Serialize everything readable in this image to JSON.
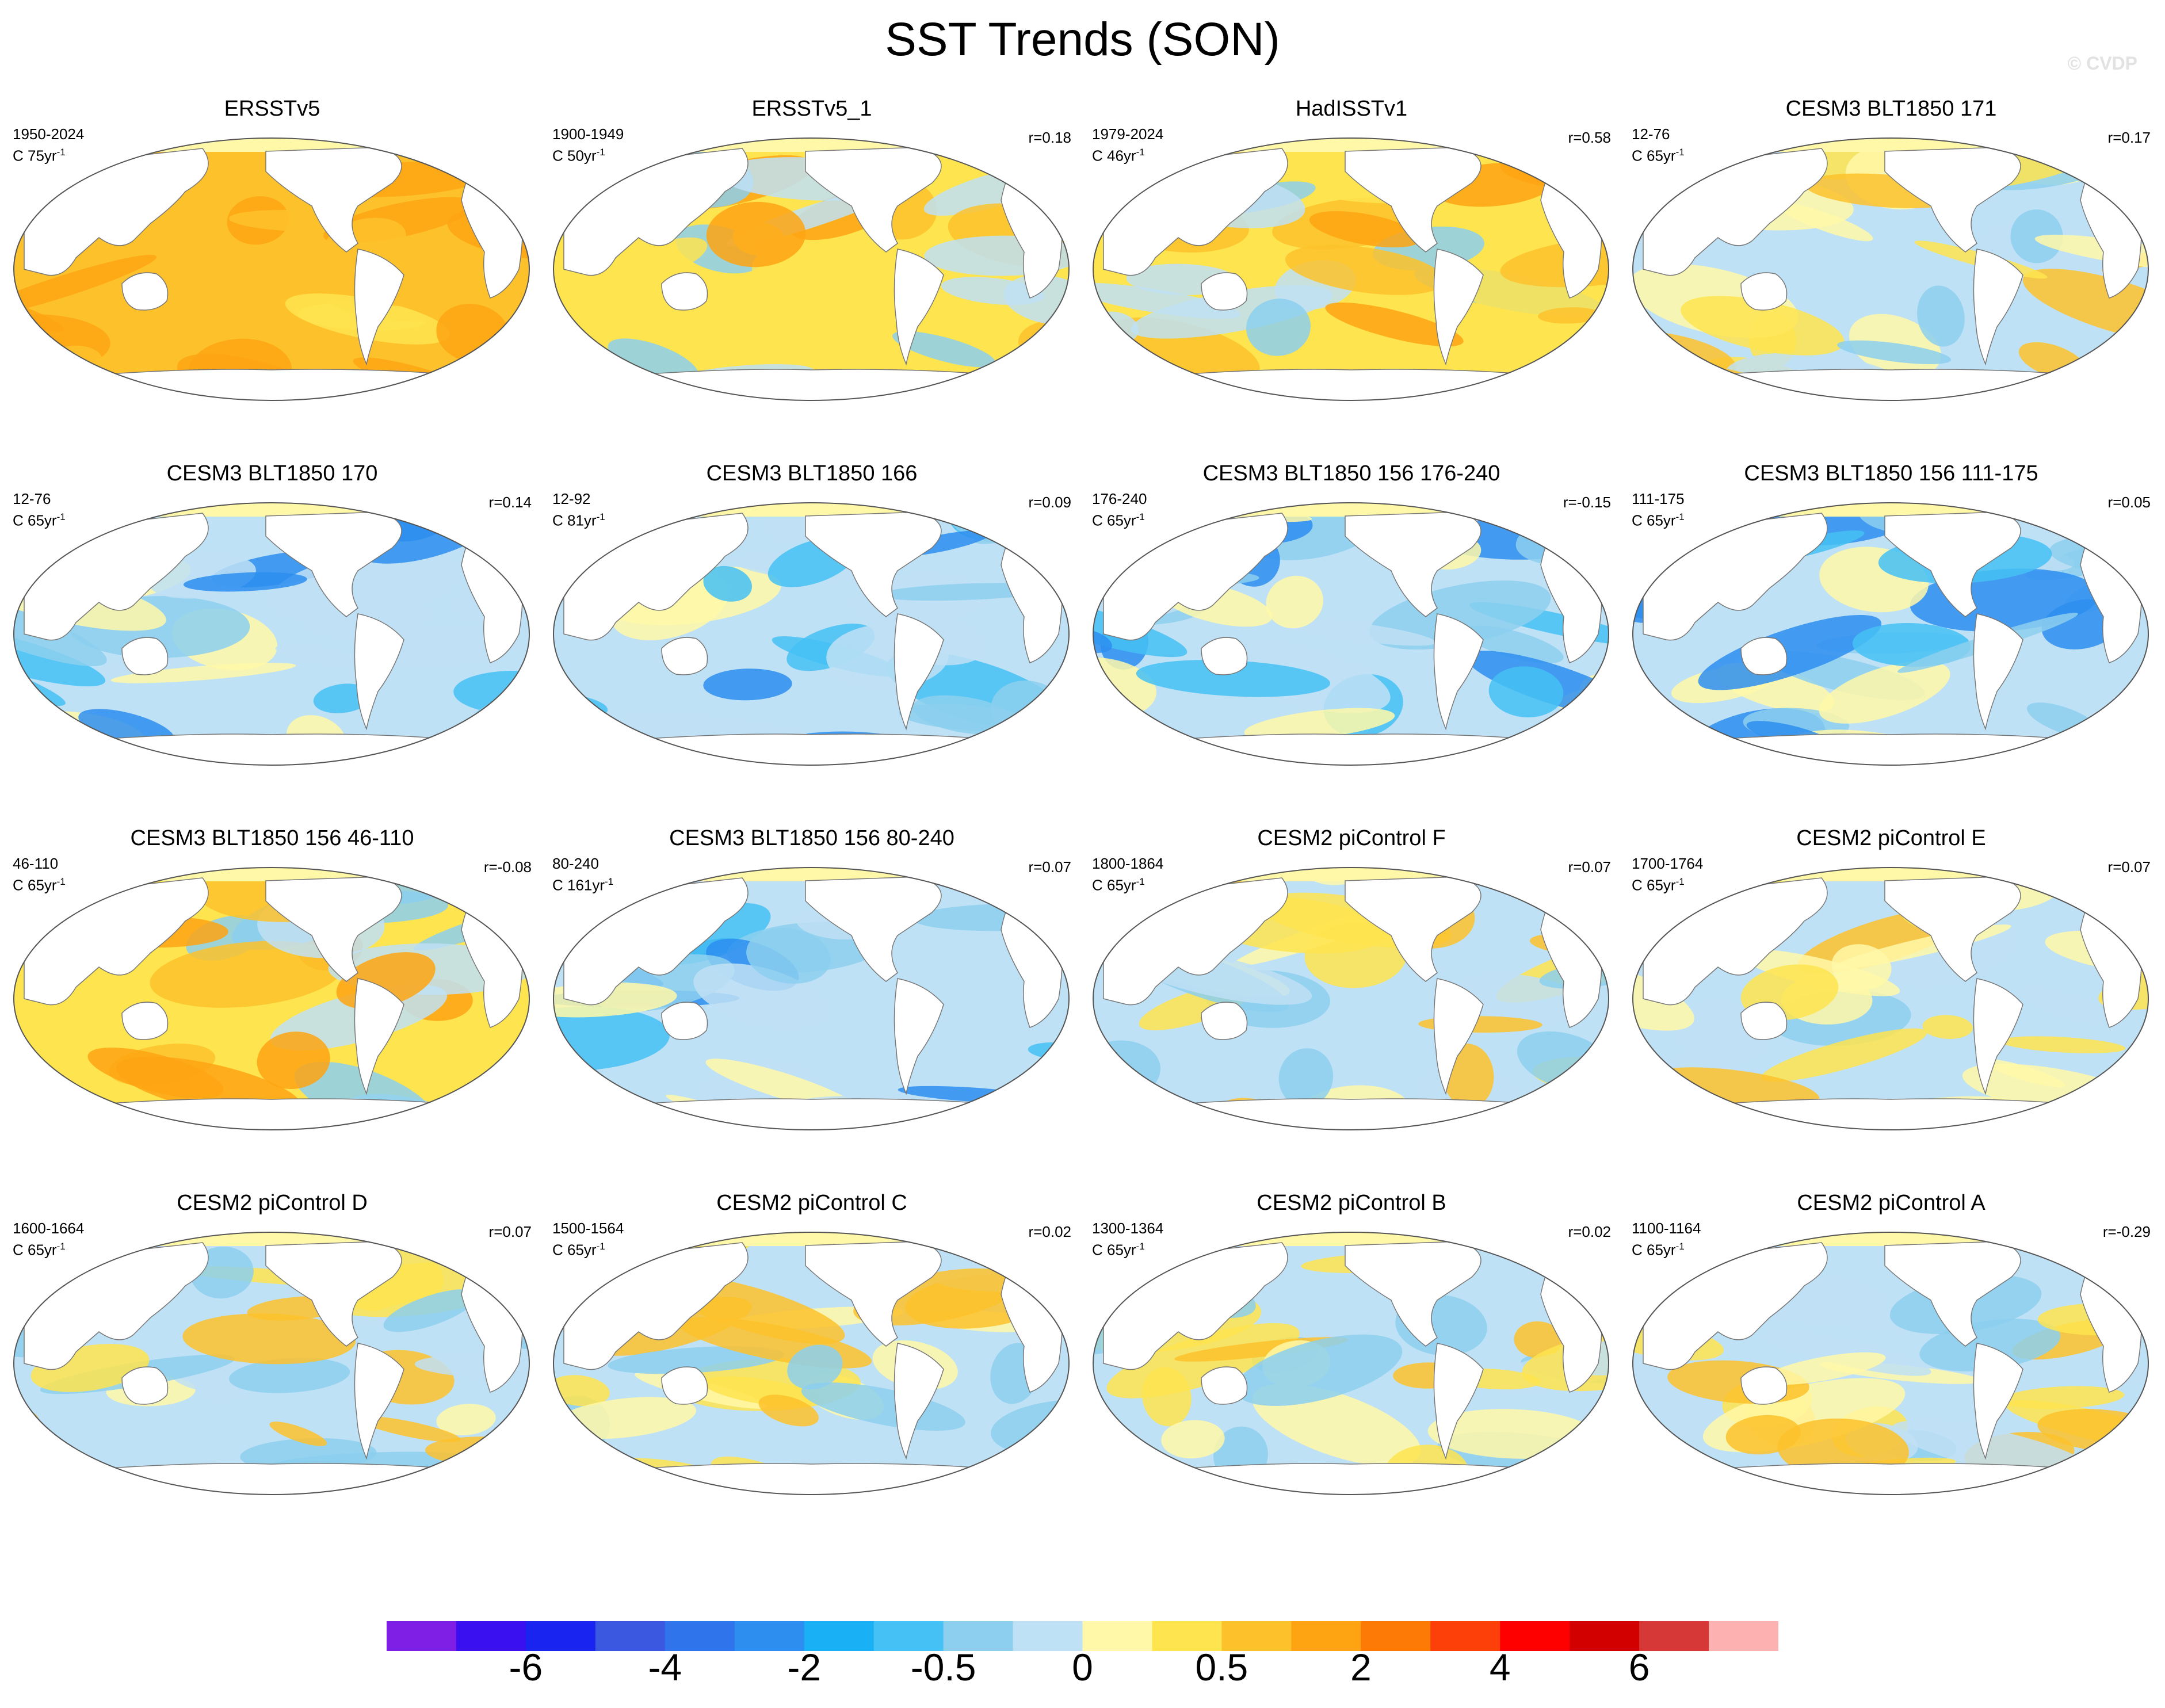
{
  "title": "SST Trends (SON)",
  "copyright": "© CVDP",
  "panels": [
    {
      "title": "ERSSTv5",
      "period": "1950-2024",
      "rate": "C 75yr",
      "r": "",
      "theme": "warm"
    },
    {
      "title": "ERSSTv5_1",
      "period": "1900-1949",
      "rate": "C 50yr",
      "r": "r=0.18",
      "theme": "warmmix"
    },
    {
      "title": "HadISSTv1",
      "period": "1979-2024",
      "rate": "C 46yr",
      "r": "r=0.58",
      "theme": "warmmix"
    },
    {
      "title": "CESM3 BLT1850 171",
      "period": "12-76",
      "rate": "C 65yr",
      "r": "r=0.17",
      "theme": "mixed"
    },
    {
      "title": "CESM3 BLT1850 170",
      "period": "12-76",
      "rate": "C 65yr",
      "r": "r=0.14",
      "theme": "cool"
    },
    {
      "title": "CESM3 BLT1850 166",
      "period": "12-92",
      "rate": "C 81yr",
      "r": "r=0.09",
      "theme": "cool"
    },
    {
      "title": "CESM3 BLT1850 156 176-240",
      "period": "176-240",
      "rate": "C 65yr",
      "r": "r=-0.15",
      "theme": "cool"
    },
    {
      "title": "CESM3 BLT1850 156 111-175",
      "period": "111-175",
      "rate": "C 65yr",
      "r": "r=0.05",
      "theme": "cool"
    },
    {
      "title": "CESM3 BLT1850 156 46-110",
      "period": "46-110",
      "rate": "C 65yr",
      "r": "r=-0.08",
      "theme": "warmmix"
    },
    {
      "title": "CESM3 BLT1850 156 80-240",
      "period": "80-240",
      "rate": "C 161yr",
      "r": "r=0.07",
      "theme": "cool"
    },
    {
      "title": "CESM2 piControl F",
      "period": "1800-1864",
      "rate": "C 65yr",
      "r": "r=0.07",
      "theme": "mixed"
    },
    {
      "title": "CESM2 piControl E",
      "period": "1700-1764",
      "rate": "C 65yr",
      "r": "r=0.07",
      "theme": "mixed"
    },
    {
      "title": "CESM2 piControl D",
      "period": "1600-1664",
      "rate": "C 65yr",
      "r": "r=0.07",
      "theme": "mixed"
    },
    {
      "title": "CESM2 piControl C",
      "period": "1500-1564",
      "rate": "C 65yr",
      "r": "r=0.02",
      "theme": "mixed"
    },
    {
      "title": "CESM2 piControl B",
      "period": "1300-1364",
      "rate": "C 65yr",
      "r": "r=0.02",
      "theme": "mixed"
    },
    {
      "title": "CESM2 piControl A",
      "period": "1100-1164",
      "rate": "C 65yr",
      "r": "r=-0.29",
      "theme": "mixed"
    }
  ],
  "rate_exponent": "-1",
  "colorbar": {
    "colors": [
      "#7f1fe6",
      "#3a10f0",
      "#1a24f0",
      "#3b59e0",
      "#2f74ea",
      "#2d8ef0",
      "#1ab0f5",
      "#45c1f5",
      "#8ccfef",
      "#bfe1f5",
      "#fff8a8",
      "#fee44f",
      "#fdc22b",
      "#fea413",
      "#fd7a07",
      "#fd3f09",
      "#fe0000",
      "#d30000",
      "#d63838",
      "#fdb1b1"
    ],
    "labels": [
      "-6",
      "-4",
      "-2",
      "-0.5",
      "0",
      "0.5",
      "2",
      "4",
      "6"
    ],
    "label_boundaries": [
      2,
      4,
      6,
      8,
      10,
      12,
      14,
      16,
      18
    ]
  }
}
